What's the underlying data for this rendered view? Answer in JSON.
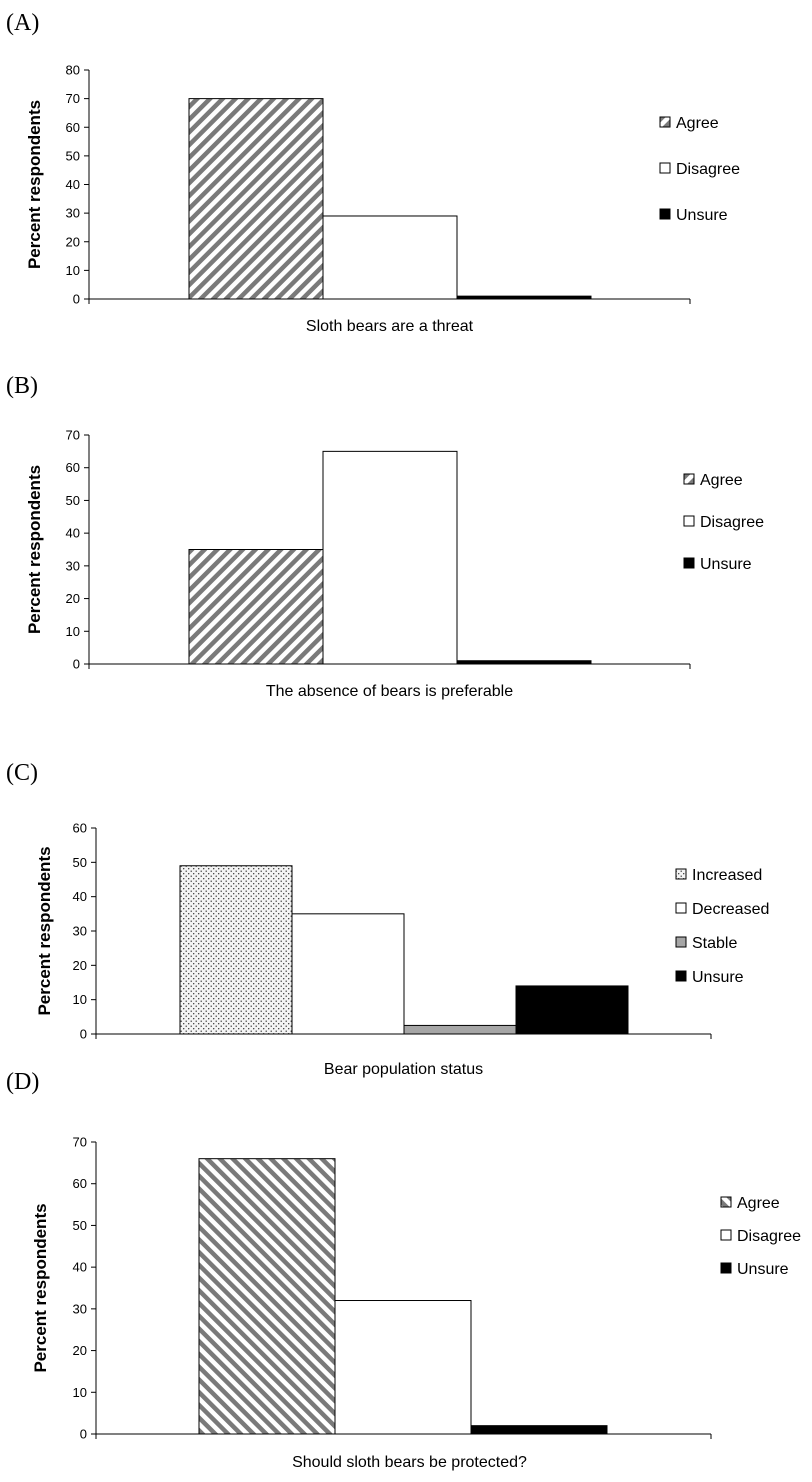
{
  "chart_data": [
    {
      "type": "bar",
      "panel": "(A)",
      "ylabel": "Percent respondents",
      "xlabel": "Sloth bears are a threat",
      "ylim": [
        0,
        80
      ],
      "yticks": [
        0,
        10,
        20,
        30,
        40,
        50,
        60,
        70,
        80
      ],
      "legend_position": "right",
      "grid": false,
      "series": [
        {
          "name": "Agree",
          "value": 70,
          "pattern": "diag-down"
        },
        {
          "name": "Disagree",
          "value": 29,
          "pattern": "white"
        },
        {
          "name": "Unsure",
          "value": 1,
          "pattern": "black"
        }
      ]
    },
    {
      "type": "bar",
      "panel": "(B)",
      "ylabel": "Percent respondents",
      "xlabel": "The absence of bears is preferable",
      "ylim": [
        0,
        70
      ],
      "yticks": [
        0,
        10,
        20,
        30,
        40,
        50,
        60,
        70
      ],
      "legend_position": "right",
      "grid": false,
      "series": [
        {
          "name": "Agree",
          "value": 35,
          "pattern": "diag-down"
        },
        {
          "name": "Disagree",
          "value": 65,
          "pattern": "white"
        },
        {
          "name": "Unsure",
          "value": 1,
          "pattern": "black"
        }
      ]
    },
    {
      "type": "bar",
      "panel": "(C)",
      "ylabel": "Percent respondents",
      "xlabel": "Bear population status",
      "ylim": [
        0,
        60
      ],
      "yticks": [
        0,
        10,
        20,
        30,
        40,
        50,
        60
      ],
      "legend_position": "right",
      "grid": false,
      "series": [
        {
          "name": "Increased",
          "value": 49,
          "pattern": "dots"
        },
        {
          "name": "Decreased",
          "value": 35,
          "pattern": "white"
        },
        {
          "name": "Stable",
          "value": 2.5,
          "pattern": "gray"
        },
        {
          "name": "Unsure",
          "value": 14,
          "pattern": "black"
        }
      ]
    },
    {
      "type": "bar",
      "panel": "(D)",
      "ylabel": "Percent respondents",
      "xlabel": "Should sloth bears be protected?",
      "ylim": [
        0,
        70
      ],
      "yticks": [
        0,
        10,
        20,
        30,
        40,
        50,
        60,
        70
      ],
      "legend_position": "right",
      "grid": false,
      "series": [
        {
          "name": "Agree",
          "value": 66,
          "pattern": "diag-up"
        },
        {
          "name": "Disagree",
          "value": 32,
          "pattern": "white"
        },
        {
          "name": "Unsure",
          "value": 2,
          "pattern": "black"
        }
      ]
    }
  ]
}
